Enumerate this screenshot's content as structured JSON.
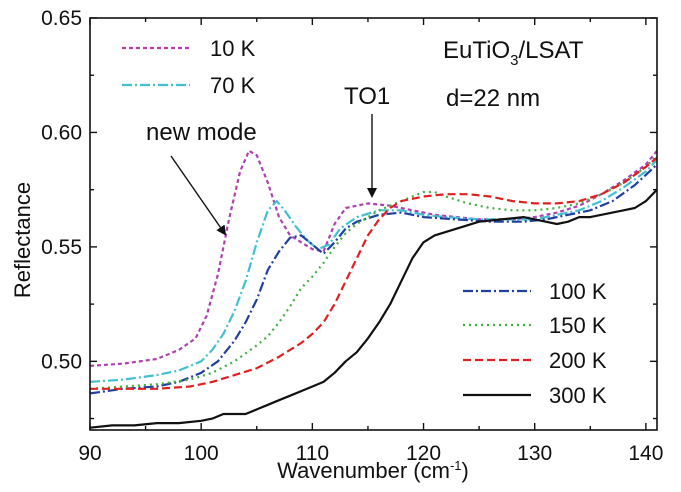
{
  "chart_data": {
    "type": "line",
    "xlabel": "Wavenumber (cm",
    "xlabel_sup": "-1",
    "xlabel_tail": ")",
    "ylabel": "Reflectance",
    "xlim": [
      90,
      141
    ],
    "ylim": [
      0.47,
      0.65
    ],
    "x_ticks": [
      90,
      100,
      110,
      120,
      130,
      140
    ],
    "x_tick_labels": [
      "90",
      "100",
      "110",
      "120",
      "130",
      "140"
    ],
    "y_ticks": [
      0.5,
      0.55,
      0.6,
      0.65
    ],
    "y_tick_labels": [
      "0.50",
      "0.55",
      "0.60",
      "0.65"
    ],
    "grid": false,
    "annotations": {
      "sample_main": "EuTiO",
      "sample_sub": "3",
      "sample_tail": "/LSAT",
      "thickness": "d=22 nm",
      "new_mode": "new mode",
      "to1": "TO1"
    },
    "legend_top": [
      "10 K",
      "70 K"
    ],
    "legend_bottom": [
      "100 K",
      "150 K",
      "200 K",
      "300 K"
    ],
    "series": [
      {
        "name": "10 K",
        "color": "#b040b0",
        "dash": "4,3",
        "points": [
          [
            90,
            0.498
          ],
          [
            93,
            0.499
          ],
          [
            96,
            0.501
          ],
          [
            98,
            0.505
          ],
          [
            99.5,
            0.51
          ],
          [
            100.5,
            0.52
          ],
          [
            101.5,
            0.538
          ],
          [
            102.5,
            0.562
          ],
          [
            103.5,
            0.583
          ],
          [
            104.3,
            0.592
          ],
          [
            105,
            0.59
          ],
          [
            106,
            0.578
          ],
          [
            107,
            0.563
          ],
          [
            108,
            0.555
          ],
          [
            109,
            0.552
          ],
          [
            110,
            0.549
          ],
          [
            111,
            0.548
          ],
          [
            112,
            0.56
          ],
          [
            113,
            0.567
          ],
          [
            115,
            0.569
          ],
          [
            117,
            0.568
          ],
          [
            119,
            0.566
          ],
          [
            121,
            0.564
          ],
          [
            123,
            0.563
          ],
          [
            125,
            0.562
          ],
          [
            128,
            0.562
          ],
          [
            130,
            0.563
          ],
          [
            132,
            0.565
          ],
          [
            134,
            0.568
          ],
          [
            136,
            0.573
          ],
          [
            138,
            0.579
          ],
          [
            140,
            0.586
          ],
          [
            141,
            0.592
          ]
        ]
      },
      {
        "name": "70 K",
        "color": "#40c0d0",
        "dash": "10,3,2,3",
        "points": [
          [
            90,
            0.491
          ],
          [
            93,
            0.492
          ],
          [
            96,
            0.494
          ],
          [
            98,
            0.496
          ],
          [
            100,
            0.5
          ],
          [
            101,
            0.505
          ],
          [
            102,
            0.512
          ],
          [
            103,
            0.522
          ],
          [
            104,
            0.535
          ],
          [
            105,
            0.552
          ],
          [
            106,
            0.566
          ],
          [
            106.8,
            0.57
          ],
          [
            107.5,
            0.566
          ],
          [
            108.5,
            0.559
          ],
          [
            109.5,
            0.553
          ],
          [
            110.5,
            0.549
          ],
          [
            111.5,
            0.551
          ],
          [
            112.5,
            0.558
          ],
          [
            114,
            0.563
          ],
          [
            116,
            0.566
          ],
          [
            118,
            0.566
          ],
          [
            120,
            0.564
          ],
          [
            122,
            0.563
          ],
          [
            125,
            0.562
          ],
          [
            128,
            0.562
          ],
          [
            130,
            0.562
          ],
          [
            132,
            0.564
          ],
          [
            134,
            0.566
          ],
          [
            136,
            0.57
          ],
          [
            138,
            0.576
          ],
          [
            140,
            0.583
          ],
          [
            141,
            0.588
          ]
        ]
      },
      {
        "name": "100 K",
        "color": "#2040a0",
        "dash": "10,3,2,3",
        "points": [
          [
            90,
            0.486
          ],
          [
            93,
            0.488
          ],
          [
            96,
            0.489
          ],
          [
            98,
            0.491
          ],
          [
            100,
            0.495
          ],
          [
            101.5,
            0.5
          ],
          [
            103,
            0.509
          ],
          [
            104,
            0.517
          ],
          [
            105,
            0.527
          ],
          [
            106,
            0.54
          ],
          [
            107,
            0.548
          ],
          [
            108,
            0.554
          ],
          [
            109,
            0.555
          ],
          [
            110,
            0.551
          ],
          [
            111,
            0.547
          ],
          [
            112,
            0.552
          ],
          [
            113,
            0.558
          ],
          [
            114,
            0.561
          ],
          [
            116,
            0.564
          ],
          [
            118,
            0.565
          ],
          [
            120,
            0.563
          ],
          [
            123,
            0.562
          ],
          [
            126,
            0.561
          ],
          [
            129,
            0.561
          ],
          [
            131,
            0.562
          ],
          [
            133,
            0.564
          ],
          [
            135,
            0.566
          ],
          [
            137,
            0.57
          ],
          [
            139,
            0.577
          ],
          [
            141,
            0.586
          ]
        ]
      },
      {
        "name": "150 K",
        "color": "#40b040",
        "dash": "2,4",
        "points": [
          [
            90,
            0.488
          ],
          [
            93,
            0.489
          ],
          [
            96,
            0.49
          ],
          [
            99,
            0.492
          ],
          [
            101,
            0.495
          ],
          [
            103,
            0.5
          ],
          [
            105,
            0.507
          ],
          [
            106,
            0.511
          ],
          [
            107,
            0.517
          ],
          [
            108,
            0.524
          ],
          [
            109,
            0.532
          ],
          [
            110,
            0.537
          ],
          [
            111,
            0.543
          ],
          [
            112,
            0.55
          ],
          [
            113,
            0.556
          ],
          [
            114,
            0.56
          ],
          [
            116,
            0.566
          ],
          [
            118,
            0.57
          ],
          [
            120,
            0.574
          ],
          [
            121,
            0.574
          ],
          [
            122,
            0.572
          ],
          [
            124,
            0.569
          ],
          [
            126,
            0.567
          ],
          [
            128,
            0.566
          ],
          [
            130,
            0.566
          ],
          [
            132,
            0.567
          ],
          [
            134,
            0.569
          ],
          [
            136,
            0.573
          ],
          [
            138,
            0.578
          ],
          [
            140,
            0.585
          ],
          [
            141,
            0.59
          ]
        ]
      },
      {
        "name": "200 K",
        "color": "#e02020",
        "dash": "8,4",
        "points": [
          [
            90,
            0.488
          ],
          [
            93,
            0.488
          ],
          [
            96,
            0.488
          ],
          [
            99,
            0.489
          ],
          [
            101,
            0.491
          ],
          [
            103,
            0.494
          ],
          [
            105,
            0.497
          ],
          [
            107,
            0.502
          ],
          [
            109,
            0.508
          ],
          [
            110,
            0.512
          ],
          [
            111,
            0.517
          ],
          [
            112,
            0.525
          ],
          [
            113,
            0.535
          ],
          [
            114,
            0.545
          ],
          [
            115,
            0.555
          ],
          [
            116,
            0.562
          ],
          [
            117,
            0.567
          ],
          [
            118,
            0.57
          ],
          [
            120,
            0.572
          ],
          [
            122,
            0.573
          ],
          [
            124,
            0.573
          ],
          [
            126,
            0.572
          ],
          [
            128,
            0.57
          ],
          [
            130,
            0.569
          ],
          [
            132,
            0.569
          ],
          [
            134,
            0.57
          ],
          [
            136,
            0.573
          ],
          [
            138,
            0.578
          ],
          [
            140,
            0.585
          ],
          [
            141,
            0.589
          ]
        ]
      },
      {
        "name": "300 K",
        "color": "#111111",
        "dash": "",
        "points": [
          [
            90,
            0.471
          ],
          [
            92,
            0.472
          ],
          [
            94,
            0.472
          ],
          [
            96,
            0.473
          ],
          [
            98,
            0.473
          ],
          [
            100,
            0.474
          ],
          [
            101,
            0.475
          ],
          [
            102,
            0.477
          ],
          [
            103,
            0.477
          ],
          [
            104,
            0.477
          ],
          [
            105,
            0.479
          ],
          [
            106,
            0.481
          ],
          [
            107,
            0.483
          ],
          [
            108,
            0.485
          ],
          [
            109,
            0.487
          ],
          [
            110,
            0.489
          ],
          [
            111,
            0.491
          ],
          [
            112,
            0.495
          ],
          [
            113,
            0.5
          ],
          [
            114,
            0.504
          ],
          [
            115,
            0.51
          ],
          [
            116,
            0.517
          ],
          [
            117,
            0.525
          ],
          [
            118,
            0.535
          ],
          [
            119,
            0.545
          ],
          [
            120,
            0.552
          ],
          [
            121,
            0.555
          ],
          [
            123,
            0.558
          ],
          [
            125,
            0.561
          ],
          [
            127,
            0.562
          ],
          [
            129,
            0.563
          ],
          [
            130,
            0.562
          ],
          [
            131,
            0.561
          ],
          [
            132,
            0.56
          ],
          [
            133,
            0.561
          ],
          [
            134,
            0.563
          ],
          [
            135,
            0.563
          ],
          [
            136,
            0.564
          ],
          [
            137,
            0.565
          ],
          [
            138,
            0.566
          ],
          [
            139,
            0.567
          ],
          [
            140,
            0.57
          ],
          [
            141,
            0.575
          ]
        ]
      }
    ]
  }
}
